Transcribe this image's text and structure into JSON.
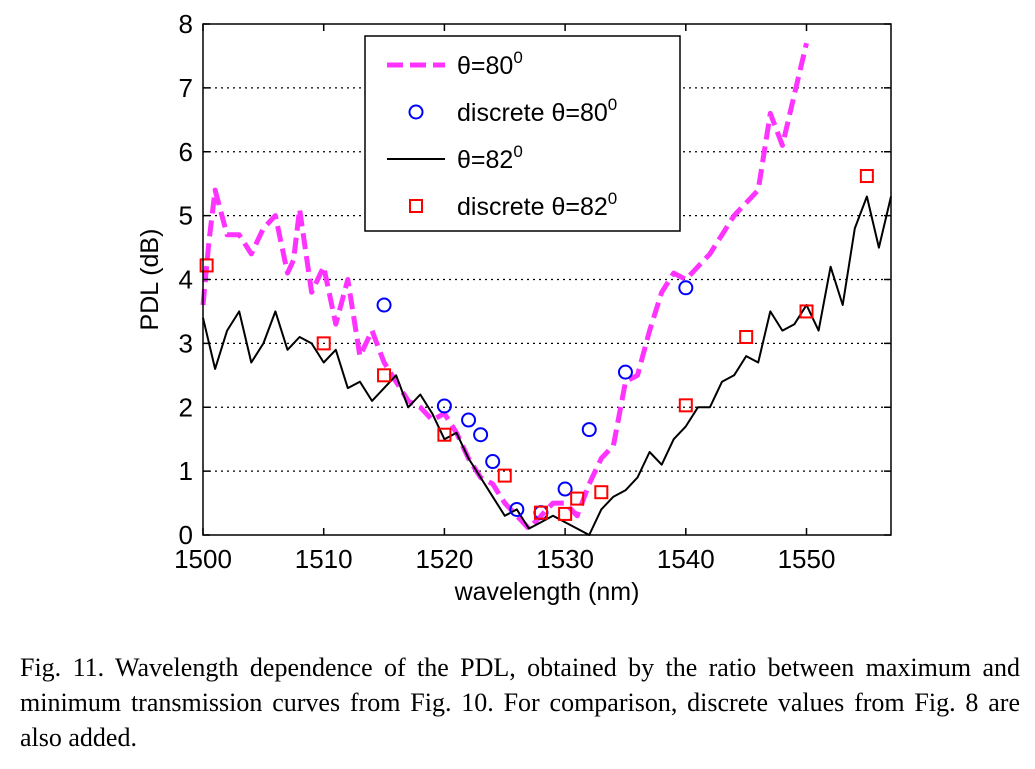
{
  "chart_data": {
    "type": "line",
    "xlabel": "wavelength (nm)",
    "ylabel": "PDL (dB)",
    "xlim": [
      1500,
      1557
    ],
    "ylim": [
      0,
      8
    ],
    "xticks": [
      "1500",
      "1510",
      "1520",
      "1530",
      "1540",
      "1550"
    ],
    "yticks": [
      "0",
      "1",
      "2",
      "3",
      "4",
      "5",
      "6",
      "7",
      "8"
    ],
    "grid": "horizontal dotted",
    "legend_position": "top-center",
    "series": [
      {
        "name": "θ=80⁰",
        "legend_text": "θ=80",
        "legend_sup": "0",
        "style": "dashed",
        "color": "#ff33ff",
        "x": [
          1500,
          1500.5,
          1501,
          1502,
          1503,
          1504,
          1505,
          1506,
          1507,
          1507.5,
          1508,
          1509,
          1510,
          1511,
          1512,
          1513,
          1514,
          1515,
          1516,
          1517,
          1518,
          1519,
          1520,
          1521,
          1522,
          1523,
          1524,
          1525,
          1526,
          1527,
          1528,
          1529,
          1530,
          1531,
          1532,
          1533,
          1534,
          1535,
          1536,
          1537,
          1538,
          1539,
          1540,
          1541,
          1542,
          1543,
          1544,
          1545,
          1546,
          1547,
          1548,
          1549,
          1550
        ],
        "y": [
          3.6,
          4.6,
          5.4,
          4.7,
          4.7,
          4.4,
          4.8,
          5.0,
          4.1,
          4.3,
          5.1,
          3.8,
          4.2,
          3.3,
          4.0,
          2.8,
          3.2,
          2.7,
          2.4,
          2.1,
          2.0,
          1.8,
          1.9,
          1.6,
          1.2,
          0.9,
          0.8,
          0.5,
          0.3,
          0.1,
          0.3,
          0.5,
          0.5,
          0.3,
          0.8,
          1.2,
          1.4,
          2.4,
          2.5,
          3.2,
          3.8,
          4.1,
          4.0,
          4.2,
          4.4,
          4.7,
          5.0,
          5.2,
          5.4,
          6.6,
          6.1,
          6.9,
          7.7
        ]
      },
      {
        "name": "discrete θ=80⁰",
        "legend_text": "discrete θ=80",
        "legend_sup": "0",
        "style": "markers-circle",
        "color": "#0000ff",
        "x": [
          1515,
          1520,
          1522,
          1523,
          1524,
          1526,
          1528,
          1530,
          1532,
          1535,
          1540
        ],
        "y": [
          3.6,
          2.02,
          1.8,
          1.57,
          1.15,
          0.4,
          0.35,
          0.72,
          1.65,
          2.55,
          3.87
        ]
      },
      {
        "name": "θ=82⁰",
        "legend_text": "θ=82",
        "legend_sup": "0",
        "style": "solid",
        "color": "#000000",
        "x": [
          1500,
          1501,
          1502,
          1503,
          1504,
          1505,
          1506,
          1507,
          1508,
          1509,
          1510,
          1511,
          1512,
          1513,
          1514,
          1515,
          1516,
          1517,
          1518,
          1519,
          1520,
          1521,
          1522,
          1523,
          1524,
          1525,
          1526,
          1527,
          1528,
          1529,
          1530,
          1531,
          1532,
          1533,
          1534,
          1535,
          1536,
          1537,
          1538,
          1539,
          1540,
          1541,
          1542,
          1543,
          1544,
          1545,
          1546,
          1547,
          1548,
          1549,
          1550,
          1551,
          1552,
          1553,
          1554,
          1555,
          1556,
          1557
        ],
        "y": [
          3.4,
          2.6,
          3.2,
          3.5,
          2.7,
          3.0,
          3.5,
          2.9,
          3.1,
          3.0,
          2.7,
          2.9,
          2.3,
          2.4,
          2.1,
          2.3,
          2.5,
          2.0,
          2.2,
          1.9,
          1.5,
          1.6,
          1.2,
          0.9,
          0.6,
          0.3,
          0.4,
          0.1,
          0.2,
          0.3,
          0.2,
          0.1,
          0.0,
          0.4,
          0.6,
          0.7,
          0.9,
          1.3,
          1.1,
          1.5,
          1.7,
          2.0,
          2.0,
          2.4,
          2.5,
          2.8,
          2.7,
          3.5,
          3.2,
          3.3,
          3.6,
          3.2,
          4.2,
          3.6,
          4.8,
          5.3,
          4.5,
          5.3
        ]
      },
      {
        "name": "discrete θ=82⁰",
        "legend_text": "discrete θ=82",
        "legend_sup": "0",
        "style": "markers-square",
        "color": "#ff0000",
        "x": [
          1500.3,
          1510,
          1515,
          1520,
          1525,
          1528,
          1530,
          1531,
          1533,
          1540,
          1545,
          1550,
          1555
        ],
        "y": [
          4.22,
          3.0,
          2.5,
          1.57,
          0.93,
          0.35,
          0.33,
          0.57,
          0.67,
          2.03,
          3.1,
          3.5,
          5.62
        ]
      }
    ]
  },
  "caption": {
    "text": "Fig. 11.   Wavelength dependence of the PDL, obtained by the ratio between maximum and minimum transmission curves from Fig. 10. For comparison, discrete values from Fig. 8 are also added."
  }
}
